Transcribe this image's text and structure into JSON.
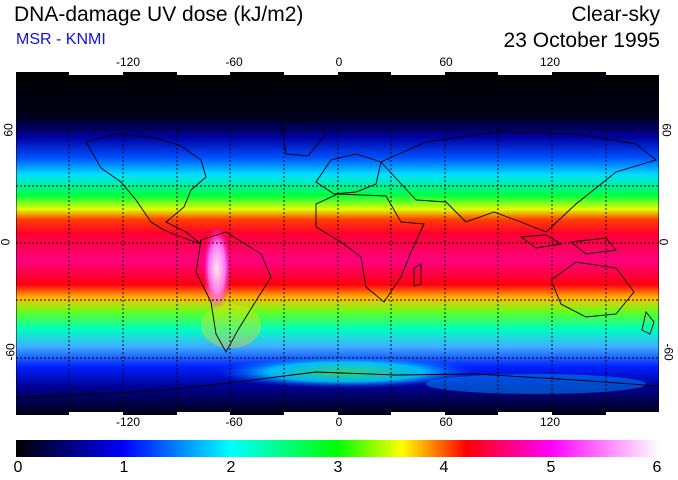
{
  "header": {
    "title": "DNA-damage UV dose (kJ/m2)",
    "source": "MSR - KNMI",
    "mode": "Clear-sky",
    "date": "23 October 1995"
  },
  "axes": {
    "lon_ticks": [
      "-120",
      "-60",
      "0",
      "60",
      "120"
    ],
    "lon_values": [
      -120,
      -60,
      0,
      60,
      120
    ],
    "lat_ticks": [
      "60",
      "0",
      "-60"
    ],
    "lat_values": [
      60,
      0,
      -60
    ],
    "lon_range": [
      -180,
      180
    ],
    "lat_range": [
      -90,
      90
    ],
    "grid": "dashed every 30 degrees"
  },
  "colorbar": {
    "labels": [
      "0",
      "1",
      "2",
      "3",
      "4",
      "5",
      "6"
    ],
    "range": [
      0,
      6
    ],
    "colors": [
      "#000000",
      "#0000ff",
      "#00ffff",
      "#00ff00",
      "#ffff00",
      "#ff0000",
      "#ff00ff",
      "#ffffff"
    ]
  }
}
